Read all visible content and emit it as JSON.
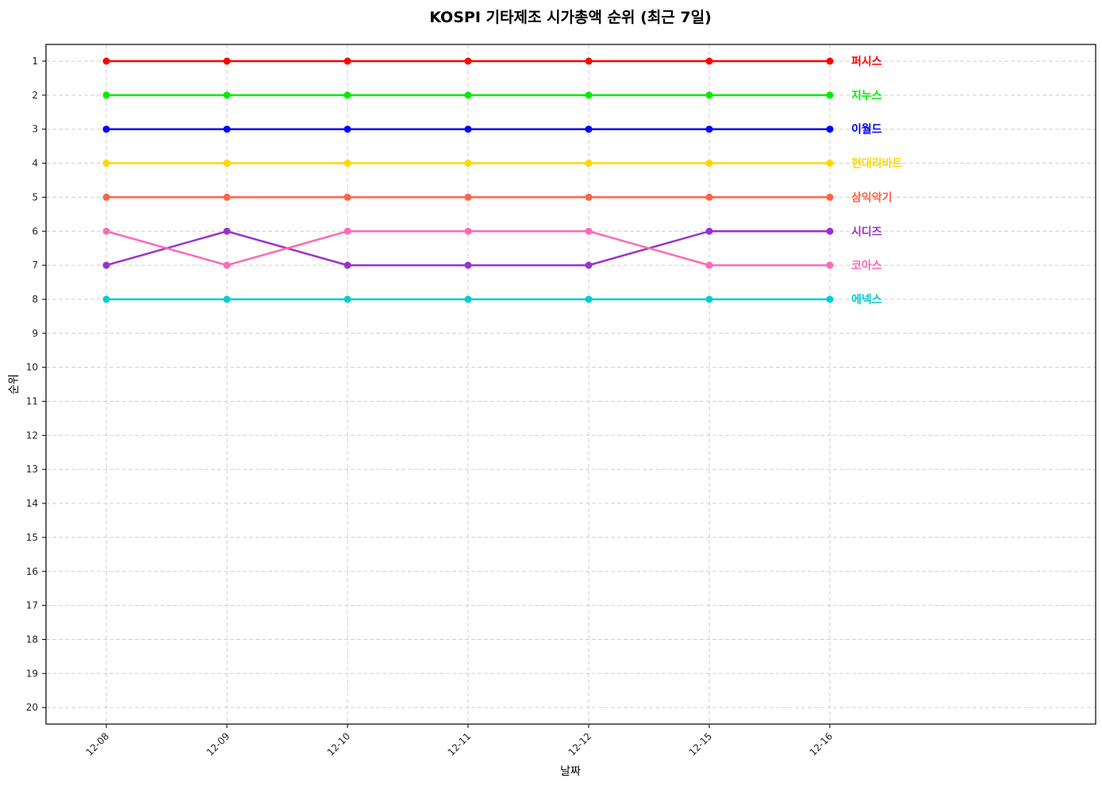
{
  "chart_data": {
    "type": "line",
    "title": "KOSPI 기타제조 시가총액 순위 (최근 7일)",
    "xlabel": "날짜",
    "ylabel": "순위",
    "categories": [
      "12-08",
      "12-09",
      "12-10",
      "12-11",
      "12-12",
      "12-15",
      "12-16"
    ],
    "ylim": [
      20,
      1
    ],
    "y_inverted": true,
    "yticks": [
      1,
      2,
      3,
      4,
      5,
      6,
      7,
      8,
      9,
      10,
      11,
      12,
      13,
      14,
      15,
      16,
      17,
      18,
      19,
      20
    ],
    "grid": true,
    "legend": "end-of-line labels",
    "series": [
      {
        "name": "퍼시스",
        "color": "#ff0000",
        "values": [
          1,
          1,
          1,
          1,
          1,
          1,
          1
        ]
      },
      {
        "name": "지누스",
        "color": "#00ee00",
        "values": [
          2,
          2,
          2,
          2,
          2,
          2,
          2
        ]
      },
      {
        "name": "이월드",
        "color": "#0000ff",
        "values": [
          3,
          3,
          3,
          3,
          3,
          3,
          3
        ]
      },
      {
        "name": "현대리바트",
        "color": "#ffd700",
        "values": [
          4,
          4,
          4,
          4,
          4,
          4,
          4
        ]
      },
      {
        "name": "삼익악기",
        "color": "#ff6347",
        "values": [
          5,
          5,
          5,
          5,
          5,
          5,
          5
        ]
      },
      {
        "name": "시디즈",
        "color": "#9932cc",
        "values": [
          7,
          6,
          7,
          7,
          7,
          6,
          6
        ]
      },
      {
        "name": "코아스",
        "color": "#ff69b4",
        "values": [
          6,
          7,
          6,
          6,
          6,
          7,
          7
        ]
      },
      {
        "name": "에넥스",
        "color": "#00ced1",
        "values": [
          8,
          8,
          8,
          8,
          8,
          8,
          8
        ]
      }
    ]
  }
}
